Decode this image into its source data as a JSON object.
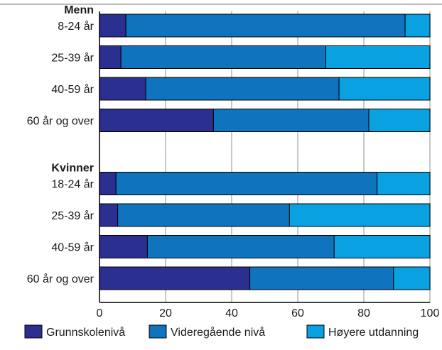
{
  "chart_data": {
    "type": "bar",
    "orientation": "horizontal",
    "stacked": true,
    "xlim": [
      0,
      100
    ],
    "x_ticks": [
      0,
      20,
      40,
      60,
      80,
      100
    ],
    "grid": true,
    "legend_position": "bottom",
    "groups": [
      {
        "label": "Menn",
        "categories": [
          "8-24 år",
          "25-39 år",
          "40-59 år",
          "60 år og over"
        ]
      },
      {
        "label": "Kvinner",
        "categories": [
          "18-24 år",
          "25-39 år",
          "40-59 år",
          "60 år og over"
        ]
      }
    ],
    "series": [
      {
        "name": "Grunnskolenivå",
        "color": "#2b2f8f",
        "values": [
          8,
          6.5,
          14,
          34.5,
          5,
          5.5,
          14.5,
          45.5
        ]
      },
      {
        "name": "Videregående nivå",
        "color": "#0f74bd",
        "values": [
          84.5,
          62,
          58.5,
          47,
          79,
          52,
          56.5,
          43.5
        ]
      },
      {
        "name": "Høyere utdanning",
        "color": "#0aa1e0",
        "values": [
          7.5,
          31.5,
          27.5,
          18.5,
          16,
          42.5,
          29,
          11
        ]
      }
    ]
  }
}
